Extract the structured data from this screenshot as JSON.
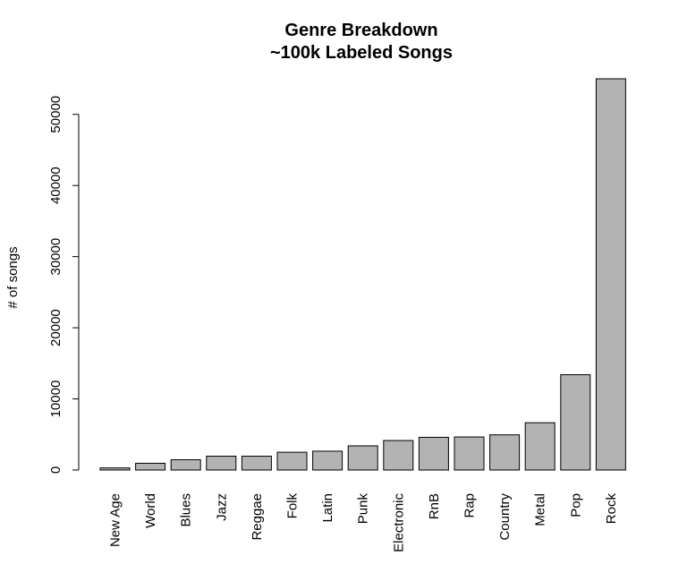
{
  "chart_data": {
    "type": "bar",
    "title": "Genre Breakdown",
    "subtitle": "~100k Labeled Songs",
    "xlabel": "",
    "ylabel": "# of songs",
    "categories": [
      "New Age",
      "World",
      "Blues",
      "Jazz",
      "Reggae",
      "Folk",
      "Latin",
      "Punk",
      "Electronic",
      "RnB",
      "Rap",
      "Country",
      "Metal",
      "Pop",
      "Rock"
    ],
    "values": [
      300,
      950,
      1450,
      1950,
      1950,
      2500,
      2650,
      3400,
      4150,
      4600,
      4650,
      4950,
      6650,
      13400,
      55000
    ],
    "yticks": [
      0,
      10000,
      20000,
      30000,
      40000,
      50000
    ],
    "ylim": [
      0,
      55000
    ],
    "grid": false,
    "bar_color": "#b3b3b3"
  }
}
